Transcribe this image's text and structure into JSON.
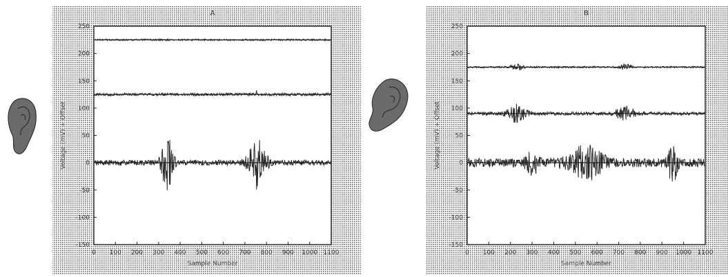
{
  "chart_data": [
    {
      "type": "line",
      "title": "A",
      "xlabel": "Sample Number",
      "ylabel": "Voltage (mV) + Offset",
      "xlim": [
        0,
        1100
      ],
      "ylim": [
        -150,
        250
      ],
      "xticks": [
        0,
        100,
        200,
        300,
        400,
        500,
        600,
        700,
        800,
        900,
        1000,
        1100
      ],
      "yticks": [
        -150,
        -100,
        -50,
        0,
        50,
        100,
        150,
        200,
        250
      ],
      "series": [
        {
          "offset": 225,
          "noise": 1.5,
          "bursts": [],
          "color": "#333333"
        },
        {
          "offset": 125,
          "noise": 2.5,
          "bursts": [
            {
              "x": 755,
              "amp": 12,
              "width": 8
            }
          ],
          "color": "#333333"
        },
        {
          "offset": 0,
          "noise": 5,
          "bursts": [
            {
              "x": 340,
              "amp": 52,
              "width": 35
            },
            {
              "x": 755,
              "amp": 45,
              "width": 55
            }
          ],
          "color": "#333333"
        }
      ],
      "grid": false
    },
    {
      "type": "line",
      "title": "B",
      "xlabel": "Sample Number",
      "ylabel": "Voltage (mV) + Offset",
      "xlim": [
        0,
        1100
      ],
      "ylim": [
        -150,
        250
      ],
      "xticks": [
        0,
        100,
        200,
        300,
        400,
        500,
        600,
        700,
        800,
        900,
        1000,
        1100
      ],
      "yticks": [
        -150,
        -100,
        -50,
        0,
        50,
        100,
        150,
        200,
        250
      ],
      "series": [
        {
          "offset": 175,
          "noise": 1.5,
          "bursts": [
            {
              "x": 230,
              "amp": 5,
              "width": 40
            },
            {
              "x": 730,
              "amp": 5,
              "width": 40
            }
          ],
          "color": "#333333"
        },
        {
          "offset": 90,
          "noise": 3,
          "bursts": [
            {
              "x": 230,
              "amp": 15,
              "width": 60
            },
            {
              "x": 730,
              "amp": 12,
              "width": 60
            }
          ],
          "color": "#333333"
        },
        {
          "offset": 0,
          "noise": 8,
          "bursts": [
            {
              "x": 300,
              "amp": 20,
              "width": 40
            },
            {
              "x": 550,
              "amp": 28,
              "width": 110
            },
            {
              "x": 950,
              "amp": 35,
              "width": 30
            }
          ],
          "color": "#333333"
        }
      ],
      "grid": false
    }
  ]
}
